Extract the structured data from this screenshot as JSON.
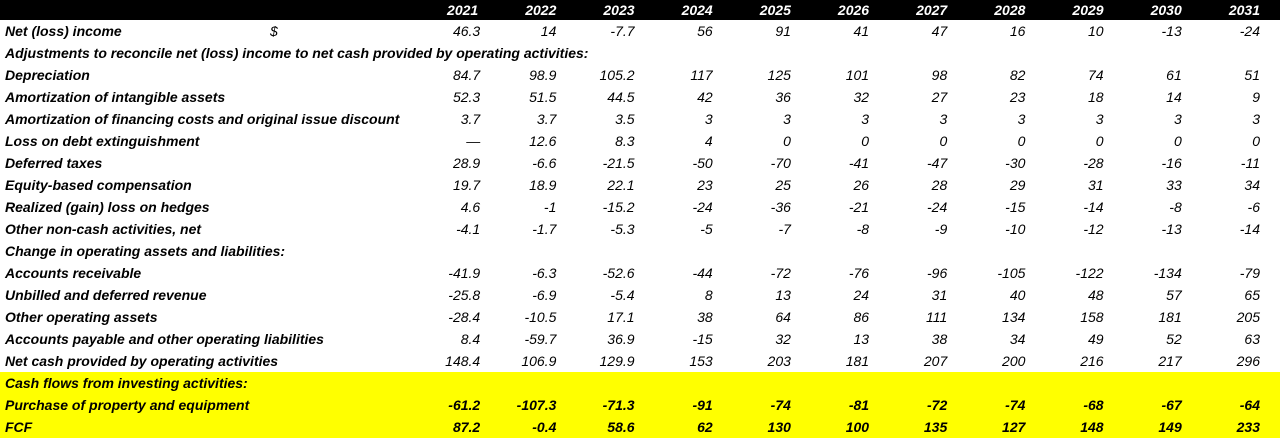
{
  "years": [
    "2021",
    "2022",
    "2023",
    "2024",
    "2025",
    "2026",
    "2027",
    "2028",
    "2029",
    "2030",
    "2031"
  ],
  "currency_symbol": "$",
  "rows": [
    {
      "type": "data",
      "label": "Net (loss) income",
      "values": [
        "46.3",
        "14",
        "-7.7",
        "56",
        "91",
        "41",
        "47",
        "16",
        "10",
        "-13",
        "-24"
      ],
      "currency": true
    },
    {
      "type": "section",
      "label": "Adjustments to reconcile net (loss) income to net cash provided by operating activities:"
    },
    {
      "type": "data",
      "label": "Depreciation",
      "values": [
        "84.7",
        "98.9",
        "105.2",
        "117",
        "125",
        "101",
        "98",
        "82",
        "74",
        "61",
        "51"
      ]
    },
    {
      "type": "data",
      "label": "Amortization of intangible assets",
      "values": [
        "52.3",
        "51.5",
        "44.5",
        "42",
        "36",
        "32",
        "27",
        "23",
        "18",
        "14",
        "9"
      ]
    },
    {
      "type": "data",
      "label": "Amortization of financing costs and original issue discount",
      "values": [
        "3.7",
        "3.7",
        "3.5",
        "3",
        "3",
        "3",
        "3",
        "3",
        "3",
        "3",
        "3"
      ]
    },
    {
      "type": "data",
      "label": "Loss on debt extinguishment",
      "values": [
        "—",
        "12.6",
        "8.3",
        "4",
        "0",
        "0",
        "0",
        "0",
        "0",
        "0",
        "0"
      ]
    },
    {
      "type": "data",
      "label": "Deferred taxes",
      "values": [
        "28.9",
        "-6.6",
        "-21.5",
        "-50",
        "-70",
        "-41",
        "-47",
        "-30",
        "-28",
        "-16",
        "-11"
      ]
    },
    {
      "type": "data",
      "label": "Equity-based compensation",
      "values": [
        "19.7",
        "18.9",
        "22.1",
        "23",
        "25",
        "26",
        "28",
        "29",
        "31",
        "33",
        "34"
      ]
    },
    {
      "type": "data",
      "label": "Realized (gain) loss on hedges",
      "values": [
        "4.6",
        "-1",
        "-15.2",
        "-24",
        "-36",
        "-21",
        "-24",
        "-15",
        "-14",
        "-8",
        "-6"
      ]
    },
    {
      "type": "data",
      "label": "Other non-cash activities, net",
      "values": [
        "-4.1",
        "-1.7",
        "-5.3",
        "-5",
        "-7",
        "-8",
        "-9",
        "-10",
        "-12",
        "-13",
        "-14"
      ]
    },
    {
      "type": "section",
      "label": "Change in operating assets and liabilities:"
    },
    {
      "type": "data",
      "label": "Accounts receivable",
      "values": [
        "-41.9",
        "-6.3",
        "-52.6",
        "-44",
        "-72",
        "-76",
        "-96",
        "-105",
        "-122",
        "-134",
        "-79"
      ]
    },
    {
      "type": "data",
      "label": "Unbilled and deferred revenue",
      "values": [
        "-25.8",
        "-6.9",
        "-5.4",
        "8",
        "13",
        "24",
        "31",
        "40",
        "48",
        "57",
        "65"
      ]
    },
    {
      "type": "data",
      "label": "Other operating assets",
      "values": [
        "-28.4",
        "-10.5",
        "17.1",
        "38",
        "64",
        "86",
        "111",
        "134",
        "158",
        "181",
        "205"
      ]
    },
    {
      "type": "data",
      "label": "Accounts payable and other operating liabilities",
      "values": [
        "8.4",
        "-59.7",
        "36.9",
        "-15",
        "32",
        "13",
        "38",
        "34",
        "49",
        "52",
        "63"
      ]
    },
    {
      "type": "data",
      "label": "Net cash provided by operating activities",
      "values": [
        "148.4",
        "106.9",
        "129.9",
        "153",
        "203",
        "181",
        "207",
        "200",
        "216",
        "217",
        "296"
      ]
    },
    {
      "type": "section",
      "label": "Cash flows from investing activities:",
      "highlight": true
    },
    {
      "type": "data",
      "label": "Purchase of property and equipment",
      "values": [
        "-61.2",
        "-107.3",
        "-71.3",
        "-91",
        "-74",
        "-81",
        "-72",
        "-74",
        "-68",
        "-67",
        "-64"
      ],
      "highlight": true,
      "bold": true
    },
    {
      "type": "data",
      "label": "FCF",
      "values": [
        "87.2",
        "-0.4",
        "58.6",
        "62",
        "130",
        "100",
        "135",
        "127",
        "148",
        "149",
        "233"
      ],
      "highlight": true,
      "bold": true
    }
  ],
  "colors": {
    "header_bg": "#000000",
    "header_text": "#ffffff",
    "highlight": "#ffff00"
  }
}
